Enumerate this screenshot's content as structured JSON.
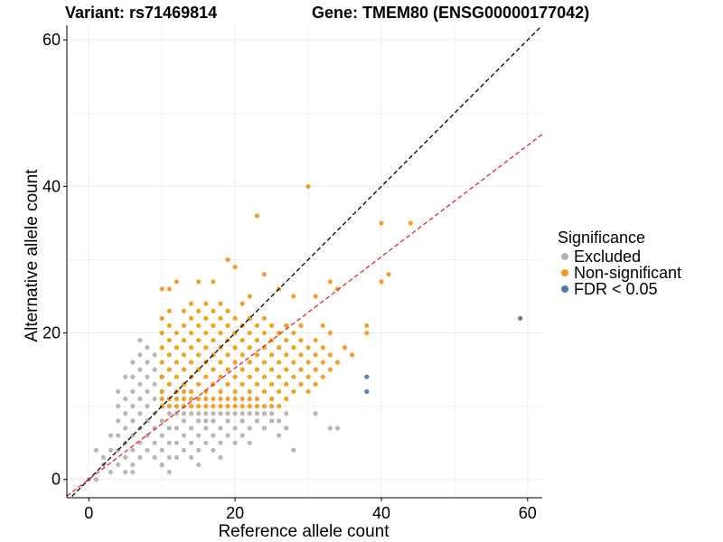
{
  "header": {
    "variant": "Variant: rs71469814",
    "gene": "Gene: TMEM80 (ENSG00000177042)"
  },
  "colors": {
    "excluded": "#b3b3b3",
    "non_significant": "#f39a1d",
    "fdr": "#4a7aae",
    "identity_line": "#000000",
    "fit_line": "#e8242a",
    "grid": "#ebebeb"
  },
  "legend": {
    "title": "Significance",
    "items": [
      {
        "label": "Excluded",
        "color_key": "excluded"
      },
      {
        "label": "Non-significant",
        "color_key": "non_significant"
      },
      {
        "label": "FDR < 0.05",
        "color_key": "fdr"
      }
    ]
  },
  "chart_data": {
    "type": "scatter",
    "xlabel": "Reference allele count",
    "ylabel": "Alternative allele count",
    "xlim": [
      -3,
      62
    ],
    "ylim": [
      -2.5,
      62
    ],
    "xticks": [
      0,
      20,
      40,
      60
    ],
    "yticks": [
      0,
      20,
      40,
      60
    ],
    "grid": true,
    "legend_position": "right",
    "reference_lines": [
      {
        "name": "y = x",
        "style": "dashed",
        "color_key": "identity_line",
        "slope": 1,
        "intercept": 0
      },
      {
        "name": "fit",
        "style": "dashed",
        "color_key": "fit_line",
        "slope": 0.76,
        "intercept": 0
      }
    ],
    "series": [
      {
        "name": "Excluded",
        "color_key": "excluded",
        "points": [
          [
            0,
            0
          ],
          [
            1,
            0
          ],
          [
            1,
            4
          ],
          [
            2,
            2
          ],
          [
            2,
            3
          ],
          [
            3,
            1
          ],
          [
            3,
            4
          ],
          [
            3,
            6
          ],
          [
            4,
            2
          ],
          [
            4,
            4
          ],
          [
            4,
            6
          ],
          [
            4,
            8
          ],
          [
            4,
            10
          ],
          [
            4,
            12
          ],
          [
            5,
            1
          ],
          [
            5,
            3
          ],
          [
            5,
            5
          ],
          [
            5,
            7
          ],
          [
            5,
            9
          ],
          [
            5,
            11
          ],
          [
            5,
            14
          ],
          [
            6,
            1
          ],
          [
            6,
            2
          ],
          [
            6,
            4
          ],
          [
            6,
            6
          ],
          [
            6,
            8
          ],
          [
            6,
            10
          ],
          [
            6,
            12
          ],
          [
            6,
            14
          ],
          [
            6,
            16
          ],
          [
            7,
            3
          ],
          [
            7,
            5
          ],
          [
            7,
            7
          ],
          [
            7,
            9
          ],
          [
            7,
            11
          ],
          [
            7,
            13
          ],
          [
            7,
            15
          ],
          [
            7,
            17
          ],
          [
            7,
            19
          ],
          [
            8,
            4
          ],
          [
            8,
            6
          ],
          [
            8,
            8
          ],
          [
            8,
            10
          ],
          [
            8,
            12
          ],
          [
            8,
            14
          ],
          [
            8,
            16
          ],
          [
            8,
            18
          ],
          [
            9,
            3
          ],
          [
            9,
            5
          ],
          [
            9,
            7
          ],
          [
            9,
            9
          ],
          [
            9,
            11
          ],
          [
            9,
            13
          ],
          [
            9,
            15
          ],
          [
            9,
            17
          ],
          [
            10,
            2
          ],
          [
            10,
            4
          ],
          [
            10,
            6
          ],
          [
            10,
            8
          ],
          [
            10,
            10
          ],
          [
            10,
            12
          ],
          [
            10,
            14
          ],
          [
            11,
            1
          ],
          [
            11,
            3
          ],
          [
            11,
            5
          ],
          [
            11,
            7
          ],
          [
            11,
            9
          ],
          [
            12,
            3
          ],
          [
            12,
            5
          ],
          [
            12,
            7
          ],
          [
            12,
            9
          ],
          [
            13,
            4
          ],
          [
            13,
            6
          ],
          [
            13,
            8
          ],
          [
            13,
            9
          ],
          [
            14,
            3
          ],
          [
            14,
            5
          ],
          [
            14,
            7
          ],
          [
            14,
            9
          ],
          [
            15,
            2
          ],
          [
            15,
            4
          ],
          [
            15,
            6
          ],
          [
            15,
            8
          ],
          [
            15,
            9
          ],
          [
            16,
            5
          ],
          [
            16,
            7
          ],
          [
            16,
            8
          ],
          [
            16,
            9
          ],
          [
            17,
            4
          ],
          [
            17,
            6
          ],
          [
            17,
            8
          ],
          [
            17,
            9
          ],
          [
            18,
            3
          ],
          [
            18,
            5
          ],
          [
            18,
            7
          ],
          [
            18,
            9
          ],
          [
            19,
            6
          ],
          [
            19,
            8
          ],
          [
            19,
            9
          ],
          [
            20,
            5
          ],
          [
            20,
            7
          ],
          [
            20,
            9
          ],
          [
            21,
            6
          ],
          [
            21,
            8
          ],
          [
            21,
            9
          ],
          [
            22,
            5
          ],
          [
            22,
            7
          ],
          [
            22,
            9
          ],
          [
            23,
            8
          ],
          [
            23,
            9
          ],
          [
            24,
            7
          ],
          [
            24,
            9
          ],
          [
            25,
            8
          ],
          [
            25,
            9
          ],
          [
            26,
            6
          ],
          [
            26,
            8
          ],
          [
            27,
            7
          ],
          [
            27,
            9
          ],
          [
            28,
            4
          ],
          [
            31,
            9
          ],
          [
            33,
            7
          ],
          [
            34,
            7
          ]
        ]
      },
      {
        "name": "Non-significant",
        "color_key": "non_significant",
        "points": [
          [
            10,
            10
          ],
          [
            10,
            11
          ],
          [
            10,
            12
          ],
          [
            10,
            14
          ],
          [
            10,
            16
          ],
          [
            10,
            18
          ],
          [
            10,
            20
          ],
          [
            10,
            22
          ],
          [
            10,
            26
          ],
          [
            11,
            10
          ],
          [
            11,
            11
          ],
          [
            11,
            13
          ],
          [
            11,
            15
          ],
          [
            11,
            17
          ],
          [
            11,
            19
          ],
          [
            11,
            21
          ],
          [
            11,
            23
          ],
          [
            11,
            26
          ],
          [
            12,
            10
          ],
          [
            12,
            11
          ],
          [
            12,
            12
          ],
          [
            12,
            14
          ],
          [
            12,
            16
          ],
          [
            12,
            18
          ],
          [
            12,
            20
          ],
          [
            12,
            27
          ],
          [
            13,
            10
          ],
          [
            13,
            11
          ],
          [
            13,
            12
          ],
          [
            13,
            13
          ],
          [
            13,
            15
          ],
          [
            13,
            17
          ],
          [
            13,
            19
          ],
          [
            13,
            21
          ],
          [
            13,
            23
          ],
          [
            14,
            10
          ],
          [
            14,
            11
          ],
          [
            14,
            12
          ],
          [
            14,
            14
          ],
          [
            14,
            16
          ],
          [
            14,
            18
          ],
          [
            14,
            20
          ],
          [
            14,
            22
          ],
          [
            14,
            24
          ],
          [
            15,
            10
          ],
          [
            15,
            11
          ],
          [
            15,
            13
          ],
          [
            15,
            15
          ],
          [
            15,
            17
          ],
          [
            15,
            19
          ],
          [
            15,
            21
          ],
          [
            15,
            23
          ],
          [
            15,
            27
          ],
          [
            16,
            10
          ],
          [
            16,
            11
          ],
          [
            16,
            12
          ],
          [
            16,
            14
          ],
          [
            16,
            16
          ],
          [
            16,
            18
          ],
          [
            16,
            20
          ],
          [
            16,
            22
          ],
          [
            16,
            24
          ],
          [
            17,
            10
          ],
          [
            17,
            11
          ],
          [
            17,
            13
          ],
          [
            17,
            15
          ],
          [
            17,
            17
          ],
          [
            17,
            19
          ],
          [
            17,
            21
          ],
          [
            17,
            23
          ],
          [
            17,
            27
          ],
          [
            18,
            10
          ],
          [
            18,
            11
          ],
          [
            18,
            12
          ],
          [
            18,
            14
          ],
          [
            18,
            16
          ],
          [
            18,
            18
          ],
          [
            18,
            20
          ],
          [
            18,
            22
          ],
          [
            18,
            24
          ],
          [
            19,
            10
          ],
          [
            19,
            11
          ],
          [
            19,
            13
          ],
          [
            19,
            15
          ],
          [
            19,
            17
          ],
          [
            19,
            19
          ],
          [
            19,
            21
          ],
          [
            19,
            23
          ],
          [
            19,
            30
          ],
          [
            20,
            10
          ],
          [
            20,
            11
          ],
          [
            20,
            12
          ],
          [
            20,
            14
          ],
          [
            20,
            16
          ],
          [
            20,
            18
          ],
          [
            20,
            20
          ],
          [
            20,
            22
          ],
          [
            20,
            29
          ],
          [
            21,
            10
          ],
          [
            21,
            11
          ],
          [
            21,
            13
          ],
          [
            21,
            15
          ],
          [
            21,
            17
          ],
          [
            21,
            19
          ],
          [
            21,
            21
          ],
          [
            21,
            24
          ],
          [
            22,
            10
          ],
          [
            22,
            11
          ],
          [
            22,
            12
          ],
          [
            22,
            14
          ],
          [
            22,
            16
          ],
          [
            22,
            18
          ],
          [
            22,
            20
          ],
          [
            22,
            22
          ],
          [
            22,
            25
          ],
          [
            23,
            10
          ],
          [
            23,
            11
          ],
          [
            23,
            13
          ],
          [
            23,
            15
          ],
          [
            23,
            17
          ],
          [
            23,
            19
          ],
          [
            23,
            21
          ],
          [
            23,
            36
          ],
          [
            24,
            10
          ],
          [
            24,
            12
          ],
          [
            24,
            14
          ],
          [
            24,
            16
          ],
          [
            24,
            18
          ],
          [
            24,
            20
          ],
          [
            24,
            22
          ],
          [
            24,
            28
          ],
          [
            25,
            10
          ],
          [
            25,
            11
          ],
          [
            25,
            13
          ],
          [
            25,
            15
          ],
          [
            25,
            17
          ],
          [
            25,
            19
          ],
          [
            25,
            21
          ],
          [
            26,
            10
          ],
          [
            26,
            12
          ],
          [
            26,
            14
          ],
          [
            26,
            16
          ],
          [
            26,
            18
          ],
          [
            26,
            20
          ],
          [
            26,
            26
          ],
          [
            27,
            11
          ],
          [
            27,
            13
          ],
          [
            27,
            15
          ],
          [
            27,
            17
          ],
          [
            27,
            19
          ],
          [
            27,
            21
          ],
          [
            28,
            12
          ],
          [
            28,
            14
          ],
          [
            28,
            16
          ],
          [
            28,
            18
          ],
          [
            28,
            20
          ],
          [
            28,
            25
          ],
          [
            29,
            13
          ],
          [
            29,
            15
          ],
          [
            29,
            17
          ],
          [
            29,
            19
          ],
          [
            29,
            21
          ],
          [
            30,
            12
          ],
          [
            30,
            14
          ],
          [
            30,
            16
          ],
          [
            30,
            18
          ],
          [
            30,
            40
          ],
          [
            31,
            13
          ],
          [
            31,
            15
          ],
          [
            31,
            17
          ],
          [
            31,
            19
          ],
          [
            31,
            25
          ],
          [
            32,
            14
          ],
          [
            32,
            16
          ],
          [
            32,
            18
          ],
          [
            32,
            21
          ],
          [
            33,
            15
          ],
          [
            33,
            17
          ],
          [
            33,
            20
          ],
          [
            33,
            27
          ],
          [
            34,
            16
          ],
          [
            34,
            26
          ],
          [
            35,
            18
          ],
          [
            36,
            17
          ],
          [
            38,
            20
          ],
          [
            38,
            21
          ],
          [
            40,
            27
          ],
          [
            40,
            35
          ],
          [
            41,
            28
          ],
          [
            44,
            35
          ]
        ]
      },
      {
        "name": "FDR < 0.05",
        "color_key": "fdr",
        "points": [
          [
            38,
            12
          ],
          [
            38,
            14
          ],
          [
            59,
            22
          ]
        ]
      }
    ]
  }
}
